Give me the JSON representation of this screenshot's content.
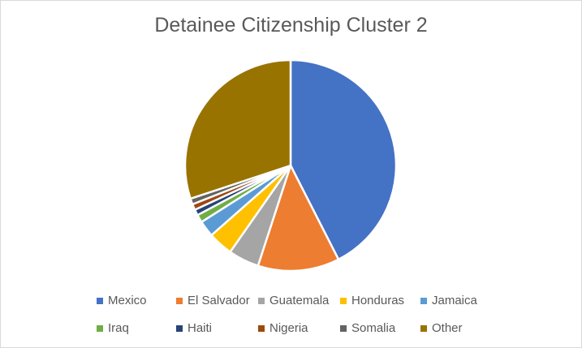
{
  "chart_data": {
    "type": "pie",
    "title": "Detainee Citizenship Cluster 2",
    "legend_position": "bottom",
    "slices": [
      {
        "label": "Mexico",
        "value": 42.5,
        "color": "#4472C4"
      },
      {
        "label": "El Salvador",
        "value": 12.5,
        "color": "#ED7D31"
      },
      {
        "label": "Guatemala",
        "value": 4.7,
        "color": "#A5A5A5"
      },
      {
        "label": "Honduras",
        "value": 3.8,
        "color": "#FFC000"
      },
      {
        "label": "Jamaica",
        "value": 2.5,
        "color": "#5B9BD5"
      },
      {
        "label": "Iraq",
        "value": 1.2,
        "color": "#70AD47"
      },
      {
        "label": "Haiti",
        "value": 0.9,
        "color": "#264478"
      },
      {
        "label": "Nigeria",
        "value": 0.9,
        "color": "#9E480E"
      },
      {
        "label": "Somalia",
        "value": 0.9,
        "color": "#636363"
      },
      {
        "label": "Other",
        "value": 30.1,
        "color": "#997300"
      }
    ]
  }
}
